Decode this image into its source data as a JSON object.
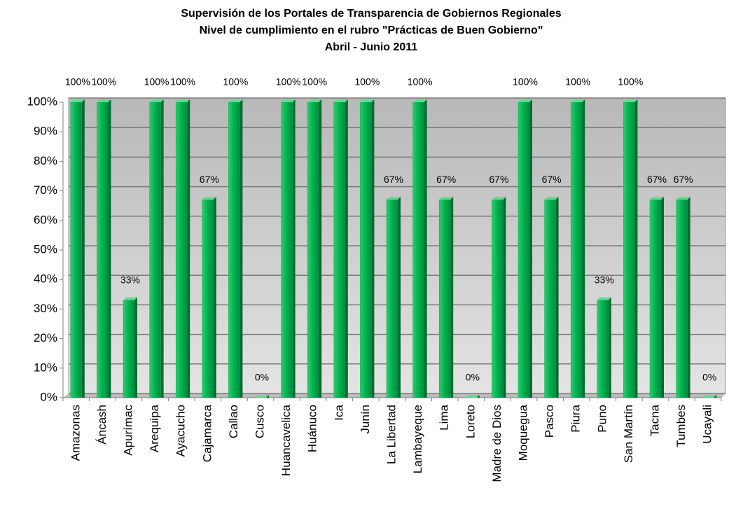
{
  "chart_data": {
    "type": "bar",
    "title": "Supervisión de los Portales de Transparencia  de Gobiernos Regionales",
    "subtitle": "Nivel de cumplimiento en el rubro \"Prácticas de Buen Gobierno\"",
    "period": "Abril - Junio 2011",
    "categories": [
      "Amazonas",
      "Áncash",
      "Apurímac",
      "Arequipa",
      "Ayacucho",
      "Cajamarca",
      "Callao",
      "Cusco",
      "Huancavelica",
      "Huánuco",
      "Ica",
      "Junín",
      "La Libertad",
      "Lambayeque",
      "Lima",
      "Loreto",
      "Madre de Dios",
      "Moquegua",
      "Pasco",
      "Piura",
      "Puno",
      "San Martín",
      "Tacna",
      "Tumbes",
      "Ucayali"
    ],
    "values": [
      100,
      100,
      33,
      100,
      100,
      67,
      100,
      0,
      100,
      100,
      100,
      100,
      67,
      100,
      67,
      0,
      67,
      100,
      67,
      100,
      33,
      100,
      67,
      67,
      0
    ],
    "value_labels": [
      "100%",
      "100%",
      "33%",
      "100%",
      "100%",
      "67%",
      "100%",
      "0%",
      "100%",
      "100%",
      null,
      "100%",
      "67%",
      "100%",
      "67%",
      "0%",
      "67%",
      "100%",
      "67%",
      "100%",
      "33%",
      "100%",
      "67%",
      "67%",
      "0%"
    ],
    "color": "#00b050",
    "ylim": [
      0,
      100
    ],
    "yticks": [
      {
        "value": 0,
        "label": "0%"
      },
      {
        "value": 10,
        "label": "10%"
      },
      {
        "value": 20,
        "label": "20%"
      },
      {
        "value": 30,
        "label": "30%"
      },
      {
        "value": 40,
        "label": "40%"
      },
      {
        "value": 50,
        "label": "50%"
      },
      {
        "value": 60,
        "label": "60%"
      },
      {
        "value": 70,
        "label": "70%"
      },
      {
        "value": 80,
        "label": "80%"
      },
      {
        "value": 90,
        "label": "90%"
      },
      {
        "value": 100,
        "label": "100%"
      }
    ],
    "grid": true
  }
}
